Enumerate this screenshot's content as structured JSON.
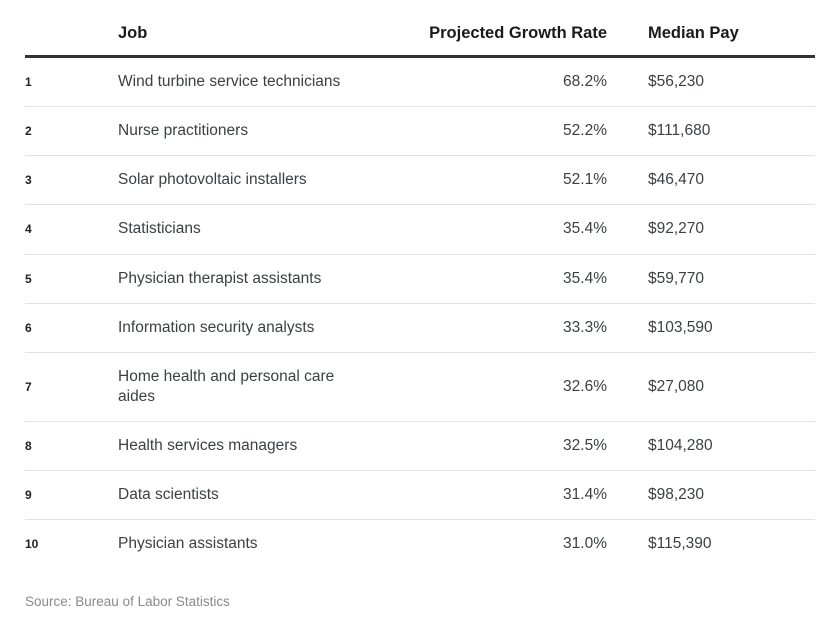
{
  "chart_data": {
    "type": "table",
    "columns": {
      "rank": "",
      "job": "Job",
      "growth": "Projected Growth Rate",
      "pay": "Median Pay"
    },
    "rows": [
      {
        "rank": "1",
        "job": "Wind turbine service technicians",
        "growth": "68.2%",
        "pay": "$56,230"
      },
      {
        "rank": "2",
        "job": "Nurse practitioners",
        "growth": "52.2%",
        "pay": "$111,680"
      },
      {
        "rank": "3",
        "job": "Solar photovoltaic installers",
        "growth": "52.1%",
        "pay": "$46,470"
      },
      {
        "rank": "4",
        "job": "Statisticians",
        "growth": "35.4%",
        "pay": "$92,270"
      },
      {
        "rank": "5",
        "job": "Physician therapist assistants",
        "growth": "35.4%",
        "pay": "$59,770"
      },
      {
        "rank": "6",
        "job": "Information security analysts",
        "growth": "33.3%",
        "pay": "$103,590"
      },
      {
        "rank": "7",
        "job": "Home health and personal care aides",
        "growth": "32.6%",
        "pay": "$27,080"
      },
      {
        "rank": "8",
        "job": "Health services managers",
        "growth": "32.5%",
        "pay": "$104,280"
      },
      {
        "rank": "9",
        "job": "Data scientists",
        "growth": "31.4%",
        "pay": "$98,230"
      },
      {
        "rank": "10",
        "job": "Physician assistants",
        "growth": "31.0%",
        "pay": "$115,390"
      }
    ],
    "source": "Source: Bureau of Labor Statistics",
    "colors": {
      "header_rule": "#333333",
      "row_divider": "#e2e2e2",
      "text": "#3c4043",
      "source_text": "#8a8a8a"
    },
    "layout": {
      "grid": true,
      "header_bold": true,
      "growth_align": "right"
    }
  }
}
